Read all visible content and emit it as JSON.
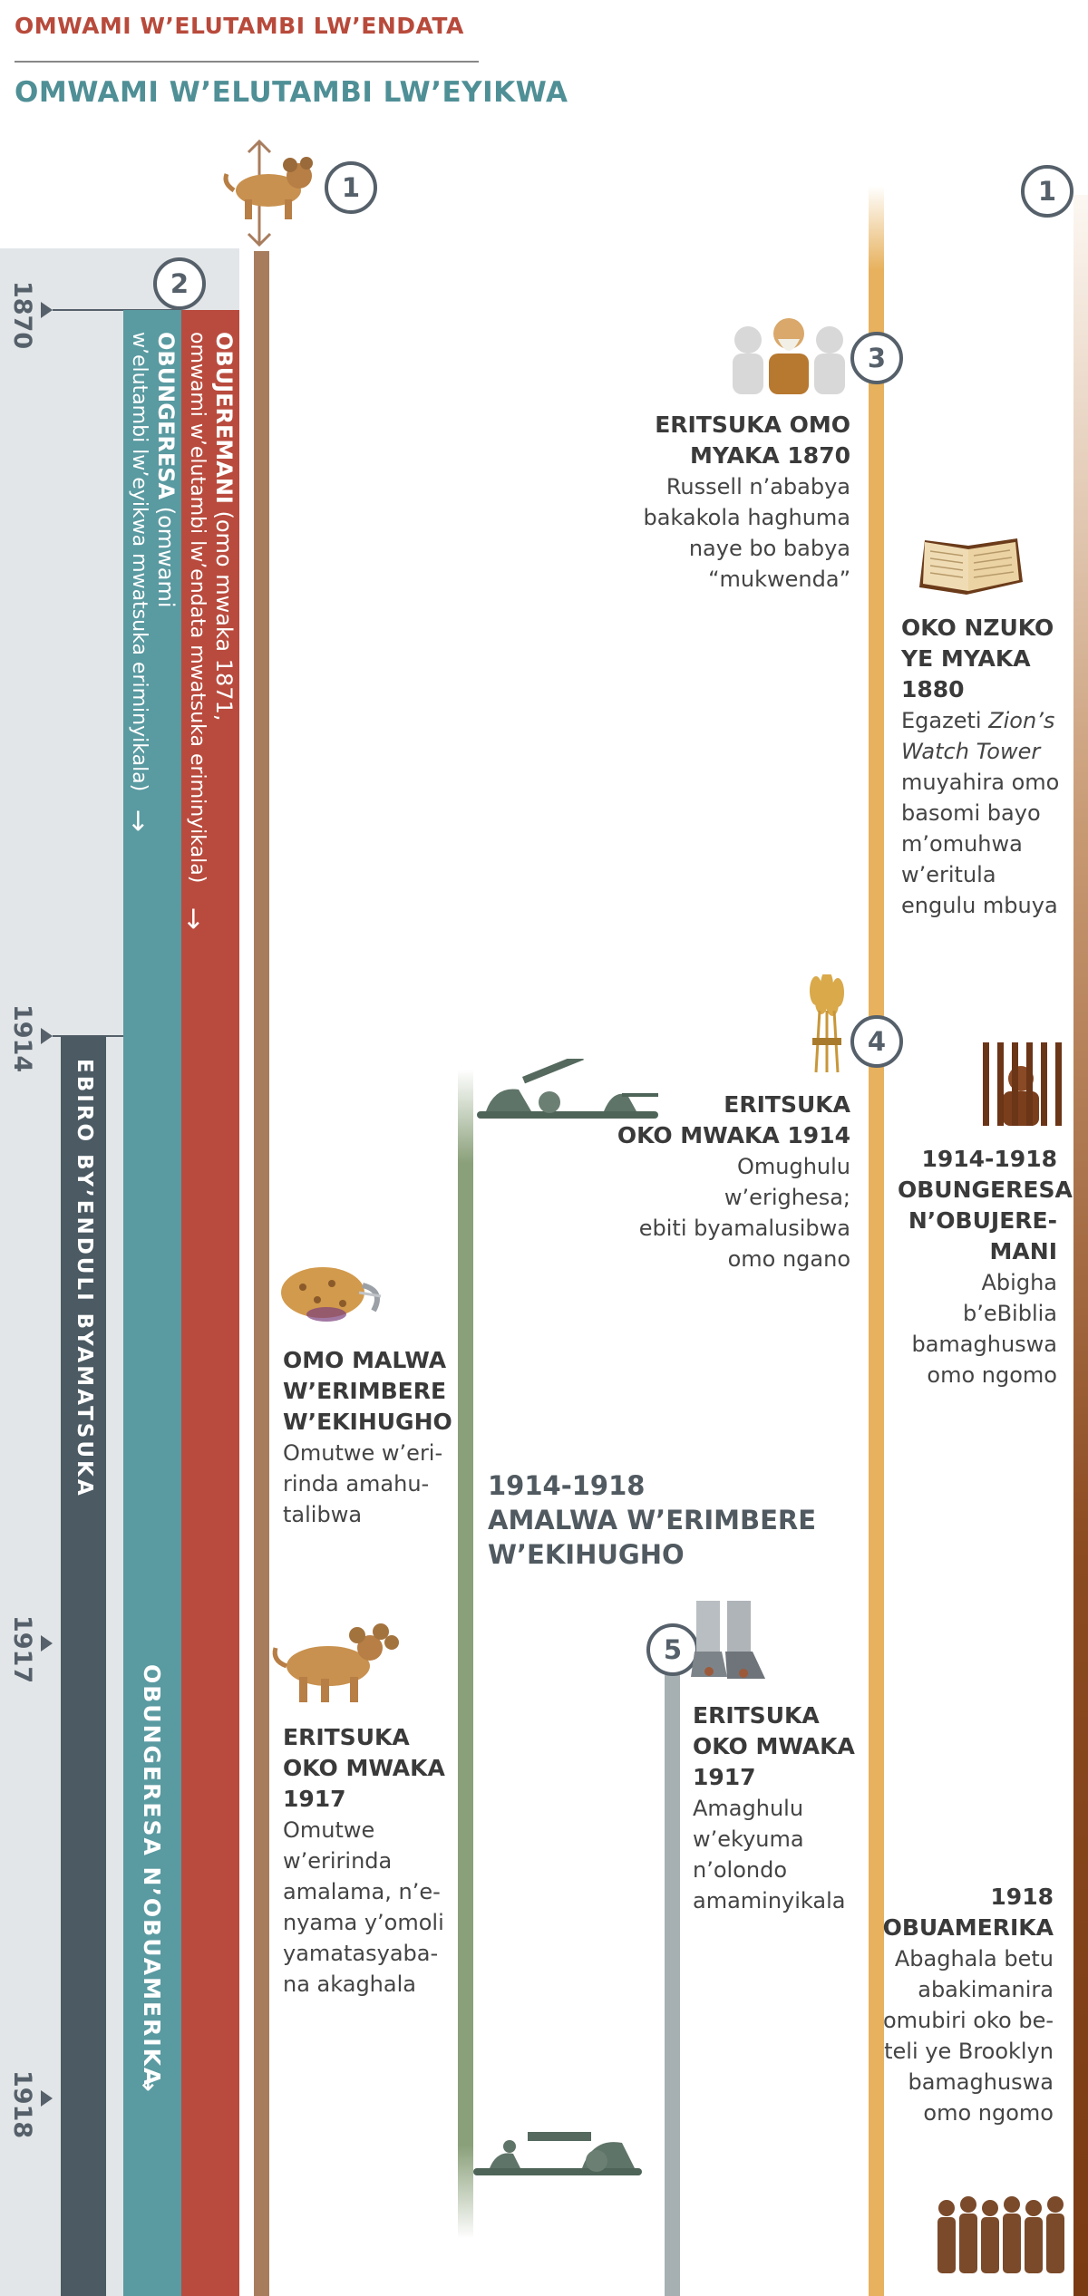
{
  "header": {
    "line1": "OMWAMI W’ELUTAMBI LW’ENDATA",
    "line2": "OMWAMI W’ELUTAMBI LW’EYIKWA"
  },
  "years": [
    "1870",
    "1914",
    "1917",
    "1918"
  ],
  "bars": {
    "red_title": "OBUJEREMANI",
    "red_rest1": " (omo mwaka 1871,",
    "red_line2": "omwami w’elutambi lw’endata mwatsuka eriminyikala)",
    "teal_title": "OBUNGERESA",
    "teal_rest1": " (omwami",
    "teal_line2": "w’elutambi lw’eyikwa mwatsuka eriminyikala)",
    "dark_label": "EBIRO BY’ENDULI BYAMATSUKA",
    "teal_lower": "OBUNGERESA N’OBUAMERIKA",
    "arrow": "→"
  },
  "markers": [
    "1",
    "2",
    "1",
    "3",
    "4",
    "5"
  ],
  "events": {
    "e3": {
      "title": [
        "ERITSUKA OMO",
        "MYAKA 1870"
      ],
      "body": [
        "Russell n’ababya",
        "bakakola haghuma",
        "naye bo babya",
        "“mukwenda”"
      ]
    },
    "e1880": {
      "title": [
        "OKO NZUKO",
        "YE MYAKA",
        "1880"
      ],
      "body_pre": "Egazeti ",
      "body_em1": "Zion’s",
      "body_em2": "Watch Tower",
      "body": [
        "muyahira omo",
        "basomi bayo",
        "m’omuhwa",
        "w’eritula",
        "engulu mbuya"
      ]
    },
    "e4": {
      "title": [
        "ERITSUKA",
        "OKO MWAKA 1914"
      ],
      "body": [
        "Omughulu",
        "w’erighesa;",
        "ebiti byamalusibwa",
        "omo ngano"
      ]
    },
    "e1914r": {
      "title": [
        "1914-1918",
        "OBUNGERESA",
        "N’OBUJERE-",
        "MANI"
      ],
      "body": [
        "Abigha",
        "b’eBiblia",
        "bamaghuswa",
        "omo ngomo"
      ]
    },
    "ewound": {
      "title": [
        "OMO MALWA",
        "W’ERIMBERE",
        "W’EKIHUGHO"
      ],
      "body": [
        "Omutwe w’eri-",
        "rinda amahu-",
        "talibwa"
      ]
    },
    "ewar": {
      "title": [
        "1914-1918",
        "AMALWA W’ERIMBERE",
        "W’EKIHUGHO"
      ]
    },
    "e5": {
      "title": [
        "ERITSUKA",
        "OKO MWAKA",
        "1917"
      ],
      "body": [
        "Amaghulu",
        "w’ekyuma",
        "n’olondo",
        "amaminyikala"
      ]
    },
    "e1917": {
      "title": [
        "ERITSUKA",
        "OKO MWAKA",
        "1917"
      ],
      "body": [
        "Omutwe",
        "w’eririnda",
        "amalama, n’e-",
        "nyama y’omoli",
        "yamatasyaba-",
        "na akaghala"
      ]
    },
    "e1918": {
      "title": [
        "1918",
        "OBUAMERIKA"
      ],
      "body": [
        "Abaghala betu",
        "abakimanira",
        "omubiri oko be-",
        "teli ye Brooklyn",
        "bamaghuswa",
        "omo ngomo"
      ]
    }
  },
  "icons": [
    "beast-icon",
    "russell-icon",
    "book-icon",
    "wheat-icon",
    "prison-icon",
    "wounded-head-icon",
    "soldiers-icon",
    "iron-clay-feet-icon",
    "beast-healed-icon",
    "cannon-icon",
    "prisoners-group-icon"
  ],
  "colors": {
    "red": "#b94b3e",
    "teal": "#5a9aa1",
    "dark": "#4b5a63",
    "gold": "#e7b15d",
    "brown": "#a87d5e"
  }
}
